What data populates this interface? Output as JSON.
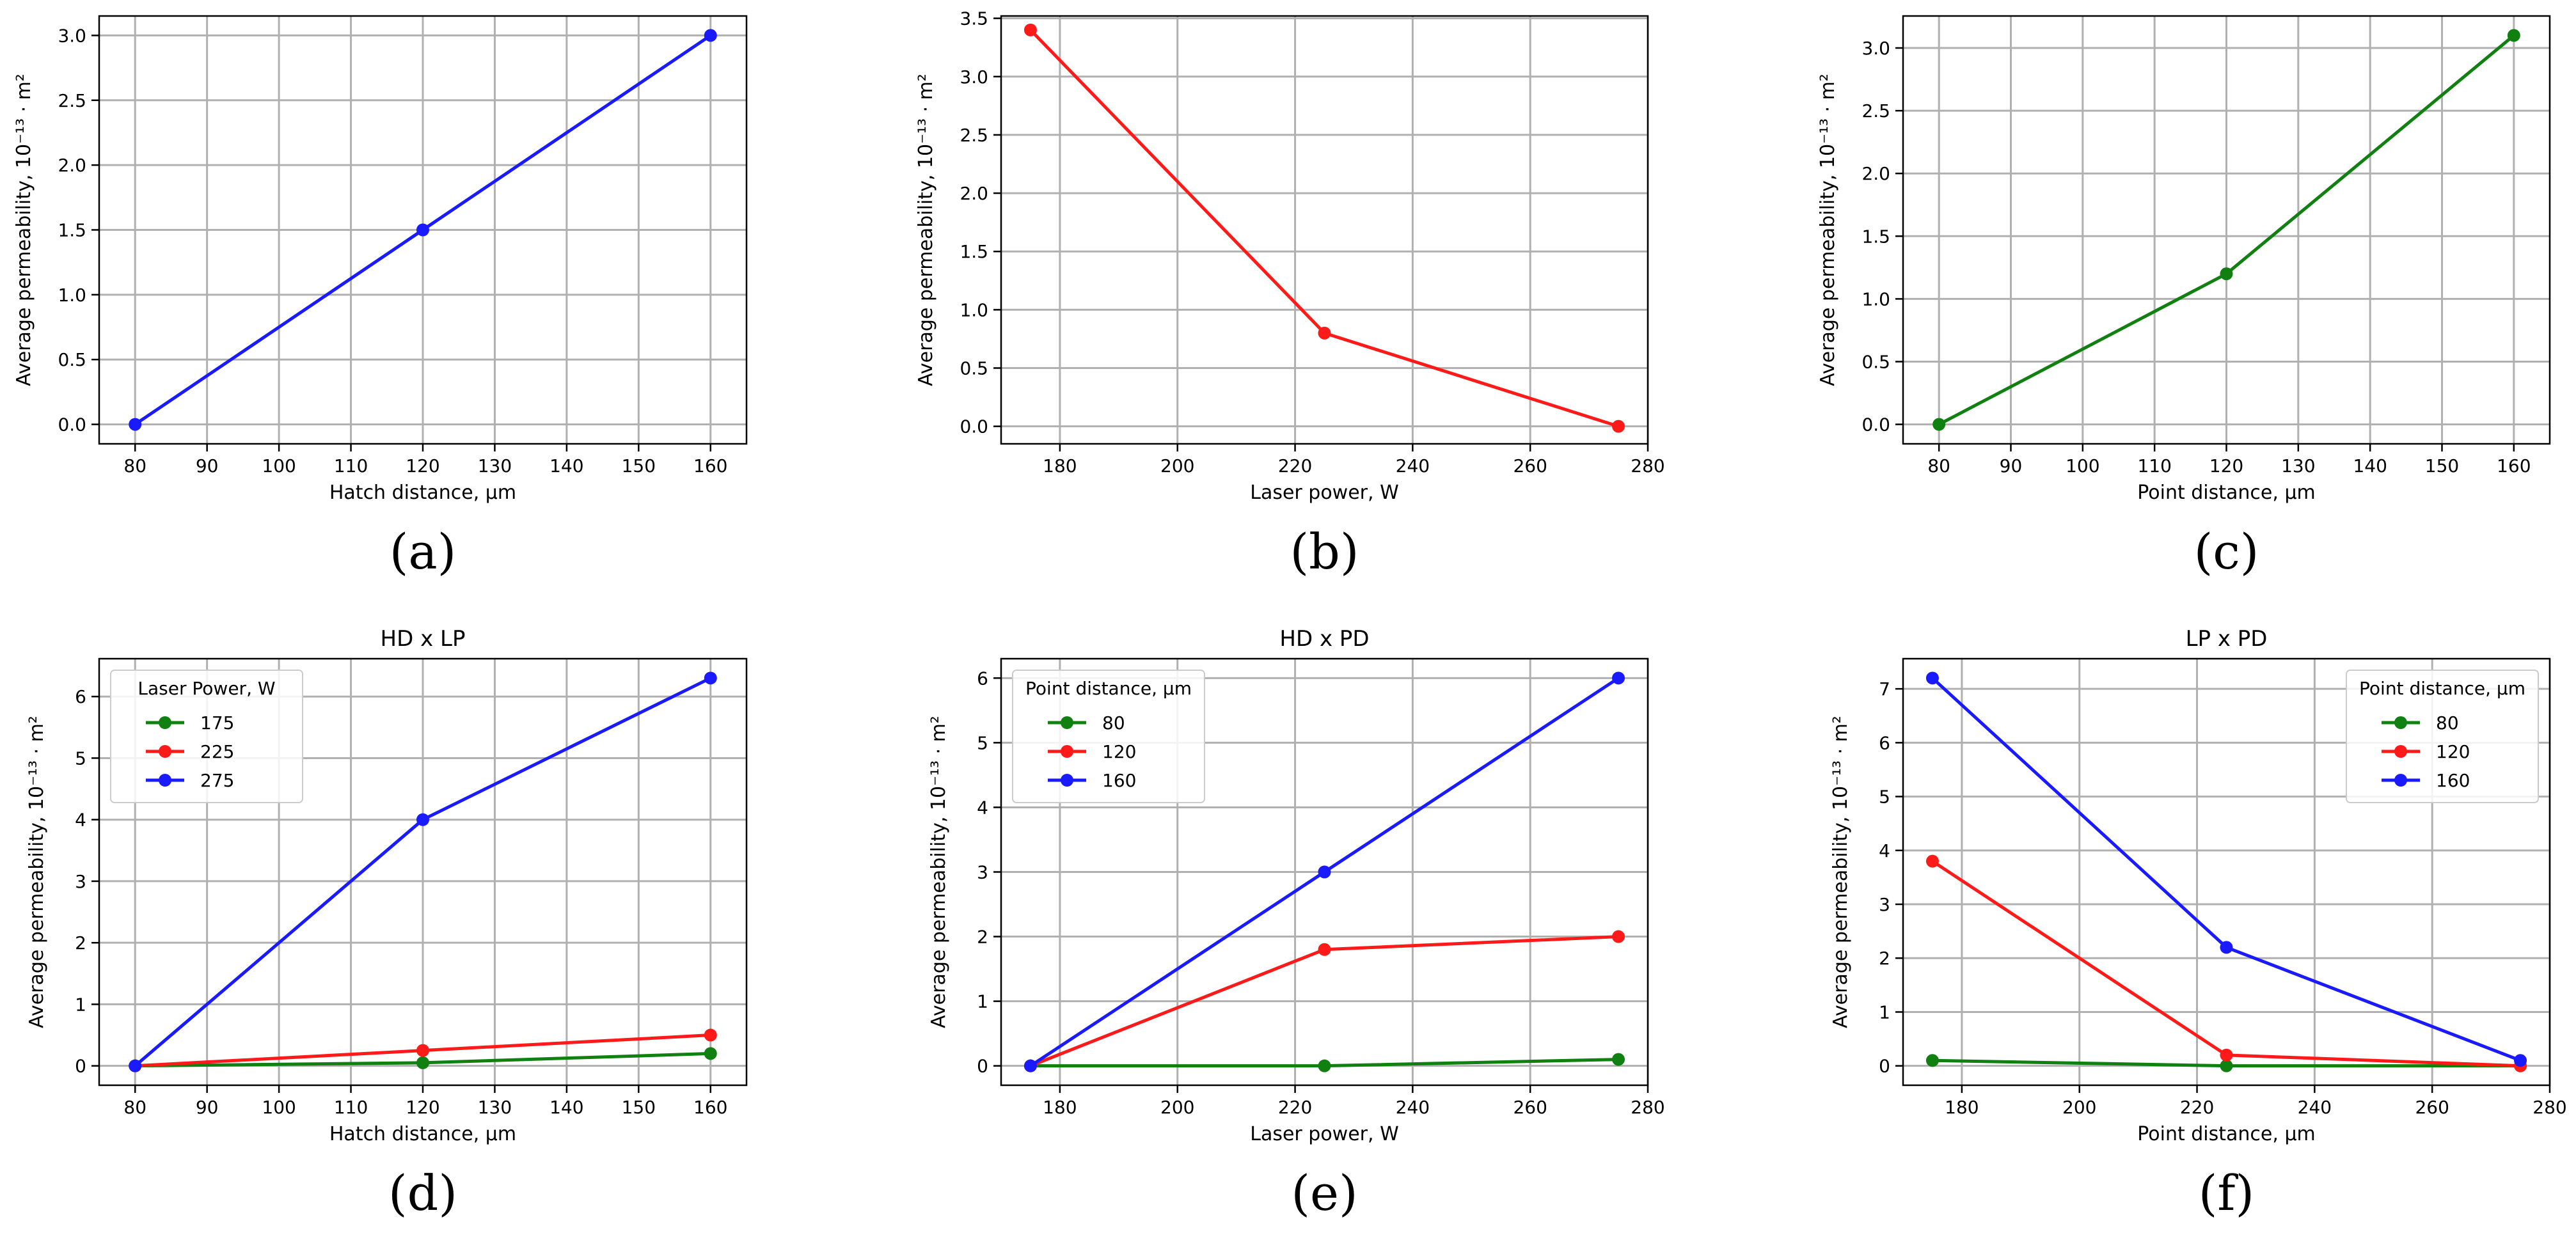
{
  "figure": {
    "colors": {
      "green": "#108010",
      "red": "#ff1a1a",
      "blue": "#1a1aff",
      "grid": "#b0b0b0"
    }
  },
  "chart_data": [
    {
      "id": "a",
      "type": "line",
      "caption": "(a)",
      "title": "",
      "xlabel": "Hatch distance, μm",
      "ylabel": "Average permeability, 10⁻¹³ · m²",
      "xlim": [
        75,
        165
      ],
      "ylim": [
        -0.15,
        3.15
      ],
      "xticks": [
        80,
        90,
        100,
        110,
        120,
        130,
        140,
        150,
        160
      ],
      "yticks": [
        0.0,
        0.5,
        1.0,
        1.5,
        2.0,
        2.5,
        3.0
      ],
      "tick_decimals": 1,
      "legend": null,
      "series": [
        {
          "name": "",
          "color": "blue",
          "x": [
            80,
            120,
            160
          ],
          "y": [
            0.0,
            1.5,
            3.0
          ]
        }
      ]
    },
    {
      "id": "b",
      "type": "line",
      "caption": "(b)",
      "title": "",
      "xlabel": "Laser power, W",
      "ylabel": "Average permeability, 10⁻¹³ · m²",
      "xlim": [
        170,
        280
      ],
      "ylim": [
        -0.15,
        3.52
      ],
      "xticks": [
        180,
        200,
        220,
        240,
        260,
        280
      ],
      "yticks": [
        0.0,
        0.5,
        1.0,
        1.5,
        2.0,
        2.5,
        3.0,
        3.5
      ],
      "tick_decimals": 1,
      "legend": null,
      "series": [
        {
          "name": "",
          "color": "red",
          "x": [
            175,
            225,
            275
          ],
          "y": [
            3.4,
            0.8,
            0.0
          ]
        }
      ]
    },
    {
      "id": "c",
      "type": "line",
      "caption": "(c)",
      "title": "",
      "xlabel": "Point distance, μm",
      "ylabel": "Average permeability, 10⁻¹³ · m²",
      "xlim": [
        75,
        165
      ],
      "ylim": [
        -0.155,
        3.255
      ],
      "xticks": [
        80,
        90,
        100,
        110,
        120,
        130,
        140,
        150,
        160
      ],
      "yticks": [
        0.0,
        0.5,
        1.0,
        1.5,
        2.0,
        2.5,
        3.0
      ],
      "tick_decimals": 1,
      "legend": null,
      "series": [
        {
          "name": "",
          "color": "green",
          "x": [
            80,
            120,
            160
          ],
          "y": [
            0.0,
            1.2,
            3.1
          ]
        }
      ]
    },
    {
      "id": "d",
      "type": "line",
      "caption": "(d)",
      "title": "HD x LP",
      "xlabel": "Hatch distance, μm",
      "ylabel": "Average permeability, 10⁻¹³ · m²",
      "xlim": [
        75,
        165
      ],
      "ylim": [
        -0.315,
        6.615
      ],
      "xticks": [
        80,
        90,
        100,
        110,
        120,
        130,
        140,
        150,
        160
      ],
      "yticks": [
        0,
        1,
        2,
        3,
        4,
        5,
        6
      ],
      "tick_decimals": 0,
      "legend": {
        "title": "Laser Power, W",
        "position": "top-left"
      },
      "series": [
        {
          "name": "175",
          "color": "green",
          "x": [
            80,
            120,
            160
          ],
          "y": [
            0.0,
            0.05,
            0.2
          ]
        },
        {
          "name": "225",
          "color": "red",
          "x": [
            80,
            120,
            160
          ],
          "y": [
            0.0,
            0.25,
            0.5
          ]
        },
        {
          "name": "275",
          "color": "blue",
          "x": [
            80,
            120,
            160
          ],
          "y": [
            0.0,
            4.0,
            6.3
          ]
        }
      ]
    },
    {
      "id": "e",
      "type": "line",
      "caption": "(e)",
      "title": "HD x PD",
      "xlabel": "Laser power, W",
      "ylabel": "Average permeability, 10⁻¹³ · m²",
      "xlim": [
        170,
        280
      ],
      "ylim": [
        -0.3,
        6.3
      ],
      "xticks": [
        180,
        200,
        220,
        240,
        260,
        280
      ],
      "yticks": [
        0,
        1,
        2,
        3,
        4,
        5,
        6
      ],
      "tick_decimals": 0,
      "legend": {
        "title": "Point distance, μm",
        "position": "top-left"
      },
      "series": [
        {
          "name": "80",
          "color": "green",
          "x": [
            175,
            225,
            275
          ],
          "y": [
            0.0,
            0.0,
            0.1
          ]
        },
        {
          "name": "120",
          "color": "red",
          "x": [
            175,
            225,
            275
          ],
          "y": [
            0.0,
            1.8,
            2.0
          ]
        },
        {
          "name": "160",
          "color": "blue",
          "x": [
            175,
            225,
            275
          ],
          "y": [
            0.0,
            3.0,
            6.0
          ]
        }
      ]
    },
    {
      "id": "f",
      "type": "line",
      "caption": "(f)",
      "title": "LP x PD",
      "xlabel": "Point distance, μm",
      "ylabel": "Average permeability, 10⁻¹³ · m²",
      "xlim": [
        170,
        280
      ],
      "ylim": [
        -0.36,
        7.56
      ],
      "xticks": [
        180,
        200,
        220,
        240,
        260,
        280
      ],
      "yticks": [
        0,
        1,
        2,
        3,
        4,
        5,
        6,
        7
      ],
      "tick_decimals": 0,
      "legend": {
        "title": "Point distance, μm",
        "position": "top-right"
      },
      "series": [
        {
          "name": "80",
          "color": "green",
          "x": [
            175,
            225,
            275
          ],
          "y": [
            0.1,
            0.0,
            0.0
          ]
        },
        {
          "name": "120",
          "color": "red",
          "x": [
            175,
            225,
            275
          ],
          "y": [
            3.8,
            0.2,
            0.0
          ]
        },
        {
          "name": "160",
          "color": "blue",
          "x": [
            175,
            225,
            275
          ],
          "y": [
            7.2,
            2.2,
            0.1
          ]
        }
      ]
    }
  ]
}
